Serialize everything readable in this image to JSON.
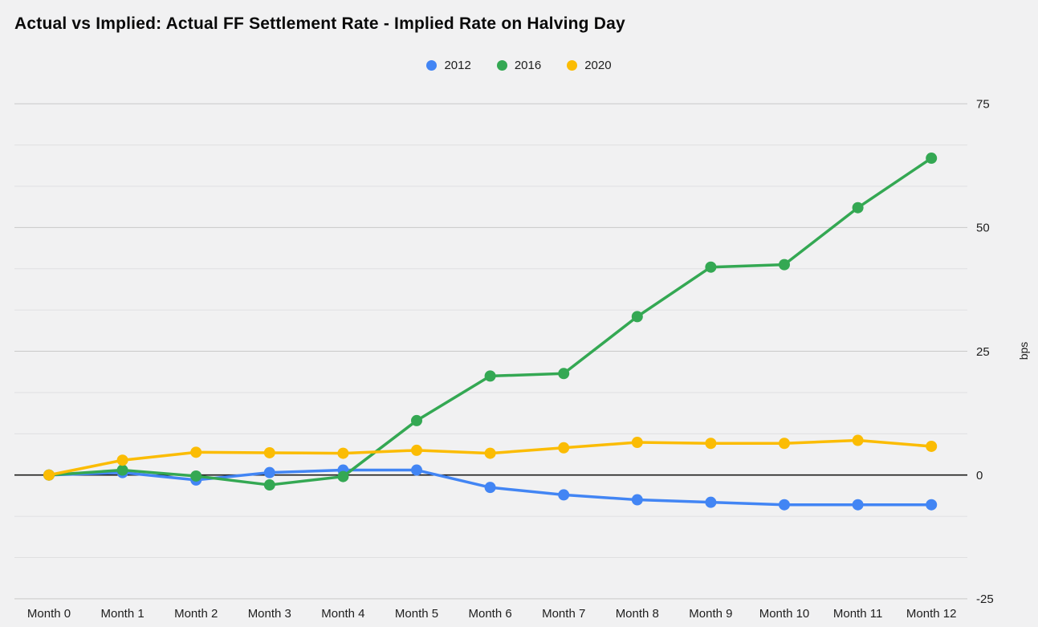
{
  "title": "Actual vs Implied: Actual FF Settlement Rate - Implied Rate on Halving Day",
  "chart_data": {
    "type": "line",
    "title": "Actual vs Implied: Actual FF Settlement Rate - Implied Rate on Halving Day",
    "categories": [
      "Month 0",
      "Month 1",
      "Month 2",
      "Month 3",
      "Month 4",
      "Month 5",
      "Month 6",
      "Month 7",
      "Month 8",
      "Month 9",
      "Month 10",
      "Month 11",
      "Month 12"
    ],
    "series": [
      {
        "name": "2012",
        "color": "#4285f4",
        "values": [
          0,
          0.5,
          -1,
          0.5,
          1,
          1,
          -2.5,
          -4,
          -5,
          -5.5,
          -6,
          -6,
          -6
        ]
      },
      {
        "name": "2016",
        "color": "#34a853",
        "values": [
          0,
          1,
          -0.2,
          -2,
          -0.3,
          11,
          20,
          20.5,
          32,
          42,
          42.5,
          54,
          64
        ]
      },
      {
        "name": "2020",
        "color": "#fbbc04",
        "values": [
          0,
          3,
          4.6,
          4.5,
          4.4,
          5,
          4.4,
          5.5,
          6.6,
          6.4,
          6.4,
          7,
          5.8
        ]
      }
    ],
    "xlabel": "",
    "ylabel": "bps",
    "ylim": [
      -25,
      75
    ],
    "yticks": [
      75,
      50,
      25,
      0,
      -25
    ],
    "minor_gridlines_between_majors": 2,
    "grid": true,
    "legend_position": "top",
    "marker": "circle"
  },
  "colors": {
    "background": "#f1f1f2",
    "major_gridline": "#c9c9c9",
    "minor_gridline": "#e0e0e1",
    "zero_line": "#1b1b1b",
    "axis_text": "#1e1e1e",
    "title_text": "#0a0a0a"
  }
}
